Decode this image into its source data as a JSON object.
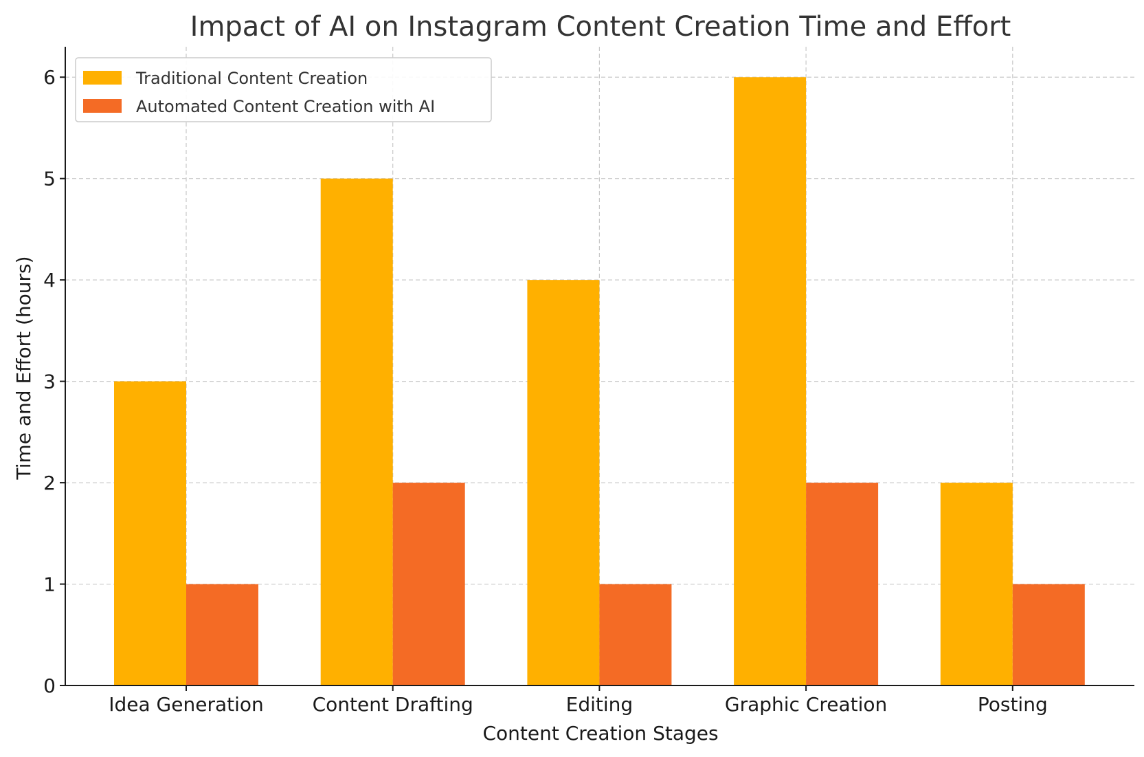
{
  "chart_data": {
    "type": "bar",
    "title": "Impact of AI on Instagram Content Creation Time and Effort",
    "xlabel": "Content Creation Stages",
    "ylabel": "Time and Effort (hours)",
    "categories": [
      "Idea Generation",
      "Content Drafting",
      "Editing",
      "Graphic Creation",
      "Posting"
    ],
    "series": [
      {
        "name": "Traditional Content Creation",
        "color": "#FFB000",
        "values": [
          3,
          5,
          4,
          6,
          2
        ]
      },
      {
        "name": "Automated Content Creation with AI",
        "color": "#F46B25",
        "values": [
          1,
          2,
          1,
          2,
          1
        ]
      }
    ],
    "ylim": [
      0,
      6.3
    ],
    "yticks": [
      "0",
      "1",
      "2",
      "3",
      "4",
      "5",
      "6"
    ],
    "grid": true,
    "legend_position": "top-left"
  }
}
